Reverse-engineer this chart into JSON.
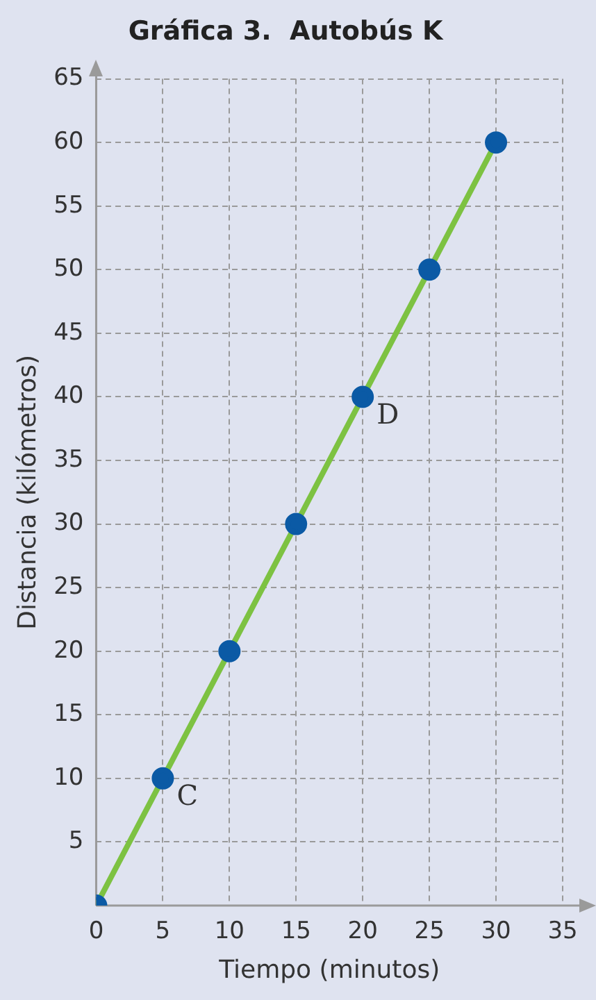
{
  "chart_data": {
    "type": "line",
    "title": "Gráfica 3.  Autobús K",
    "xlabel": "Tiempo (minutos)",
    "ylabel": "Distancia (kilómetros)",
    "x": [
      0,
      5,
      10,
      15,
      20,
      25,
      30
    ],
    "series": [
      {
        "color": "#7dc242",
        "colors": [
          "#0b5aa5",
          "#0b5aa5",
          "#0b5aa5",
          "#0b5aa5",
          "#0b5aa5",
          "#0b5aa5",
          "#0b5aa5"
        ],
        "values": [
          0,
          10,
          20,
          30,
          40,
          50,
          60
        ]
      }
    ],
    "marker": "circle",
    "line_style": "solid",
    "grid": true,
    "legend": false,
    "xlim": [
      0,
      35
    ],
    "xticks": [
      0,
      5,
      10,
      15,
      20,
      25,
      30,
      35
    ],
    "ylim": [
      0,
      65
    ],
    "yticks": [
      {
        "value": 0,
        "label": null
      },
      5,
      10,
      15,
      20,
      25,
      30,
      35,
      40,
      45,
      50,
      55,
      60,
      65
    ],
    "annotations": [
      {
        "text": "C",
        "x": 5,
        "y": 10
      },
      {
        "text": "D",
        "x": 20,
        "y": 40
      }
    ]
  }
}
